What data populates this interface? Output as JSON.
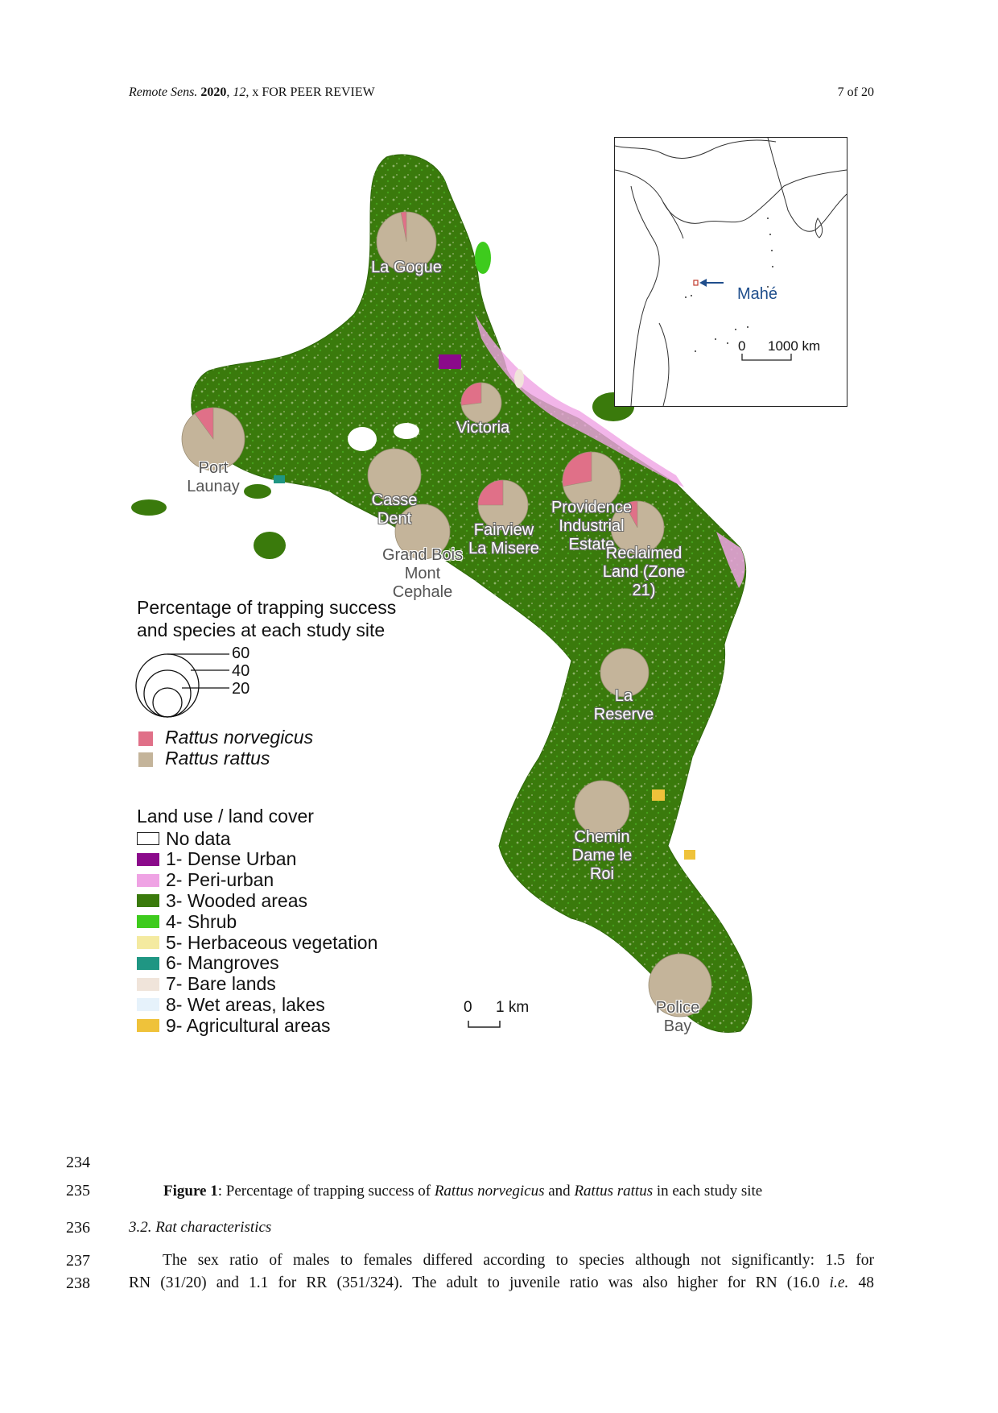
{
  "header": {
    "journal_italic": "Remote Sens.",
    "journal_year": "2020",
    "journal_vol": "12",
    "journal_rest": ", x FOR PEER REVIEW",
    "page": "7 of 20"
  },
  "figure": {
    "sites": [
      {
        "label": "La Gogue",
        "rn_fraction": 0.03
      },
      {
        "label": "Victoria",
        "rn_fraction": 0.27
      },
      {
        "label": "Port\nLaunay",
        "rn_fraction": 0.1
      },
      {
        "label": "Casse\nDent",
        "rn_fraction": 0.0
      },
      {
        "label": "Grand Bois\nMont\nCephale",
        "rn_fraction": 0.0
      },
      {
        "label": "Fairview\nLa Misere",
        "rn_fraction": 0.25
      },
      {
        "label": "Providence\nIndustrial\nEstate",
        "rn_fraction": 0.28
      },
      {
        "label": "Reclaimed\nLand (Zone\n21)",
        "rn_fraction": 0.08
      },
      {
        "label": "La\nReserve",
        "rn_fraction": 0.0
      },
      {
        "label": "Chemin\nDame le\nRoi",
        "rn_fraction": 0.0
      },
      {
        "label": "Police\nBay",
        "rn_fraction": 0.0
      }
    ],
    "size_legend": {
      "title": "Percentage of trapping success\nand species at each study site",
      "values": [
        "60",
        "40",
        "20"
      ]
    },
    "species_legend": [
      {
        "name": "Rattus norvegicus",
        "color": "#e07088"
      },
      {
        "name": "Rattus rattus",
        "color": "#c4b49a"
      }
    ],
    "landcover_legend": {
      "title": "Land use / land cover",
      "items": [
        {
          "label": "No data",
          "color": "#ffffff"
        },
        {
          "label": "1- Dense Urban",
          "color": "#8b0a8b"
        },
        {
          "label": "2- Peri-urban",
          "color": "#efa3e4"
        },
        {
          "label": "3- Wooded areas",
          "color": "#3a7a0c"
        },
        {
          "label": "4- Shrub",
          "color": "#3ecb1d"
        },
        {
          "label": "5- Herbaceous vegetation",
          "color": "#f4eaa0"
        },
        {
          "label": "6- Mangroves",
          "color": "#1f9683"
        },
        {
          "label": "7- Bare lands",
          "color": "#f0e4da"
        },
        {
          "label": "8- Wet areas, lakes",
          "color": "#e6f2fb"
        },
        {
          "label": "9- Agricultural areas",
          "color": "#efc23a"
        }
      ]
    },
    "scalebar": {
      "zero": "0",
      "label": "1 km"
    },
    "inset": {
      "place": "Mahé",
      "zero": "0",
      "label": "1000 km"
    }
  },
  "lines": [
    {
      "num": "234"
    },
    {
      "num": "235"
    },
    {
      "num": "236"
    },
    {
      "num": "237"
    },
    {
      "num": "238"
    }
  ],
  "caption": {
    "bold": "Figure 1",
    "p1": ": Percentage of trapping success of ",
    "i1": "Rattus norvegicus",
    "p2": " and ",
    "i2": "Rattus rattus",
    "p3": " in each study site"
  },
  "section": "3.2. Rat characteristics",
  "paragraph": {
    "line1": "The sex ratio of males to females differed according to species although not significantly: 1.5 for",
    "line2_a": "RN (31/20) and 1.1 for RR (351/324). The adult to juvenile ratio was also higher for RN (16.0 ",
    "line2_ie": "i.e.",
    "line2_b": " 48"
  }
}
